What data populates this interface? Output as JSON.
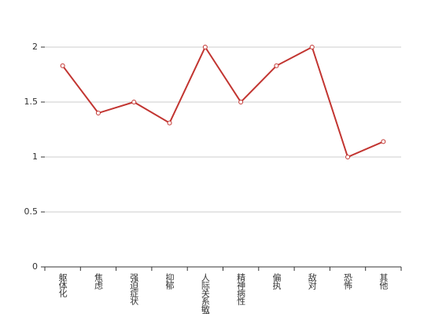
{
  "chart_data": {
    "type": "line",
    "categories": [
      "躯体化",
      "焦虑",
      "强迫症状",
      "抑郁",
      "人际关系敏感",
      "精神病性",
      "偏执",
      "敌对",
      "恐怖",
      "其他"
    ],
    "series": [
      {
        "color": "#c23531",
        "values": [
          1.83,
          1.4,
          1.5,
          1.31,
          2,
          1.5,
          1.83,
          2,
          1,
          1.14
        ]
      }
    ],
    "ylim": [
      0,
      2
    ],
    "yticks": [
      0,
      0.5,
      1,
      1.5,
      2
    ],
    "grid": true
  }
}
